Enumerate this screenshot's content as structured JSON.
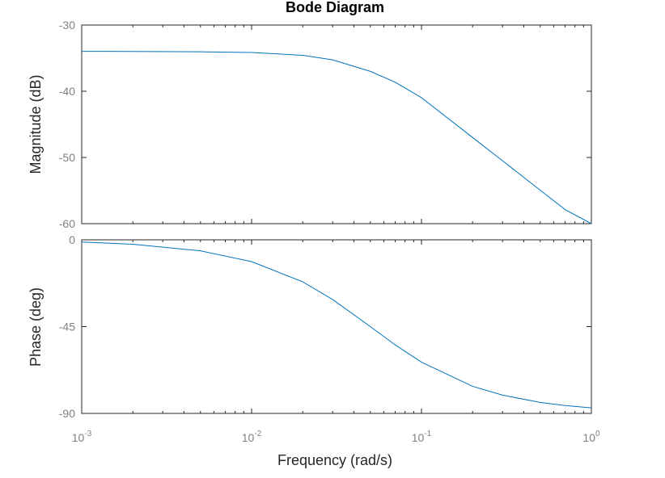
{
  "chart_data": [
    {
      "type": "line",
      "panel": "magnitude",
      "title": "Bode Diagram",
      "ylabel": "Magnitude (dB)",
      "xscale": "log",
      "xlim": [
        0.001,
        1
      ],
      "ylim": [
        -60,
        -30
      ],
      "yticks": [
        "-30",
        "-40",
        "-50",
        "-60"
      ],
      "grid": false,
      "series": [
        {
          "color": "#0072BD",
          "x": [
            0.001,
            0.002,
            0.005,
            0.01,
            0.02,
            0.03,
            0.05,
            0.07,
            0.1,
            0.2,
            0.3,
            0.5,
            0.7,
            1.0
          ],
          "y": [
            -33.98,
            -33.99,
            -34.04,
            -34.15,
            -34.57,
            -35.26,
            -37.0,
            -38.63,
            -40.97,
            -46.99,
            -50.5,
            -54.95,
            -57.87,
            -60.0
          ]
        }
      ]
    },
    {
      "type": "line",
      "panel": "phase",
      "xlabel": "Frequency  (rad/s)",
      "ylabel": "Phase (deg)",
      "xscale": "log",
      "xlim": [
        0.001,
        1
      ],
      "ylim": [
        -90,
        0
      ],
      "yticks": [
        "0",
        "-45",
        "-90"
      ],
      "xticks": [
        {
          "base": "10",
          "exp": "-3"
        },
        {
          "base": "10",
          "exp": "-2"
        },
        {
          "base": "10",
          "exp": "-1"
        },
        {
          "base": "10",
          "exp": "0"
        }
      ],
      "grid": false,
      "series": [
        {
          "color": "#0072BD",
          "x": [
            0.001,
            0.002,
            0.005,
            0.01,
            0.02,
            0.03,
            0.05,
            0.07,
            0.1,
            0.2,
            0.3,
            0.5,
            0.7,
            1.0
          ],
          "y": [
            -1.15,
            -2.29,
            -5.71,
            -11.31,
            -21.8,
            -30.96,
            -45.0,
            -54.46,
            -63.43,
            -75.96,
            -80.54,
            -84.29,
            -85.91,
            -87.14
          ]
        }
      ]
    }
  ]
}
